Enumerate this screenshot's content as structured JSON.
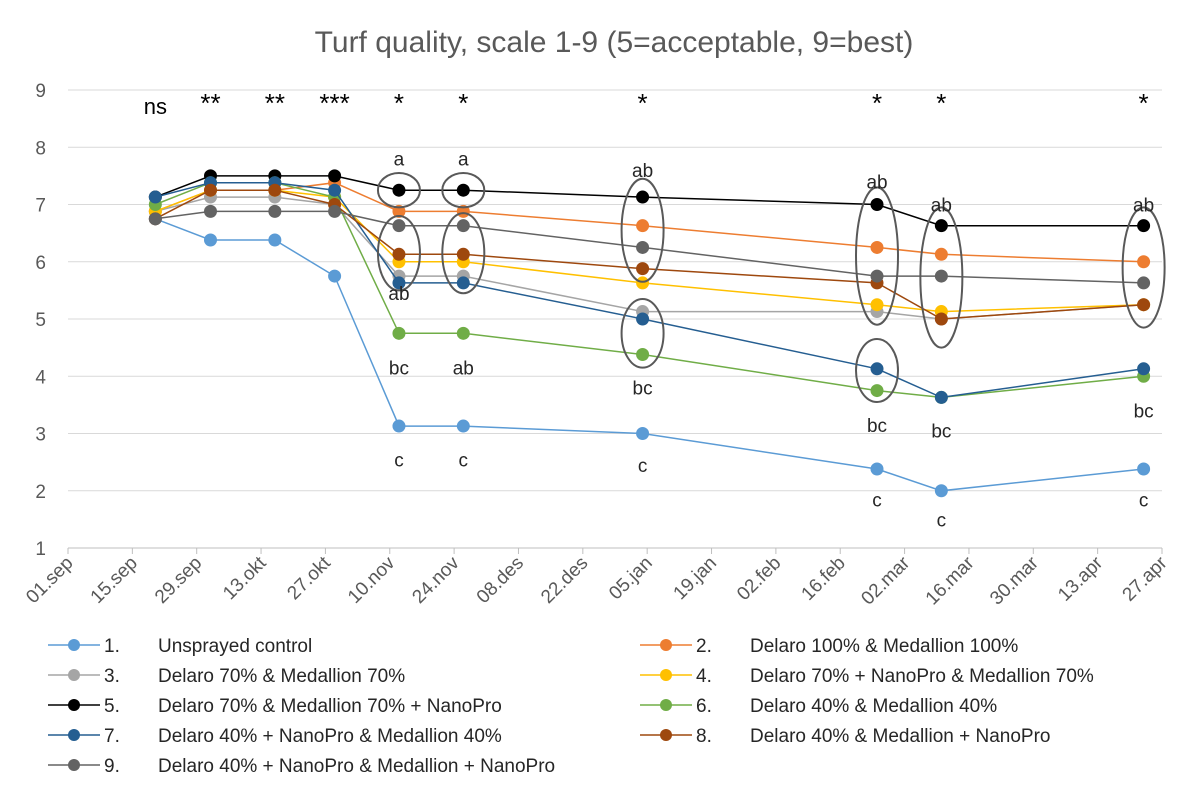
{
  "chart_data": {
    "type": "line",
    "title": "Turf quality, scale 1-9 (5=acceptable, 9=best)",
    "xlabel": "",
    "ylabel": "",
    "ylim": [
      1,
      9
    ],
    "yticks": [
      "1",
      "2",
      "3",
      "4",
      "5",
      "6",
      "7",
      "8",
      "9"
    ],
    "x_range_days": [
      0,
      238
    ],
    "x_ticks": [
      {
        "label": "01.sep",
        "day": 0
      },
      {
        "label": "15.sep",
        "day": 14
      },
      {
        "label": "29.sep",
        "day": 28
      },
      {
        "label": "13.okt",
        "day": 42
      },
      {
        "label": "27.okt",
        "day": 56
      },
      {
        "label": "10.nov",
        "day": 70
      },
      {
        "label": "24.nov",
        "day": 84
      },
      {
        "label": "08.des",
        "day": 98
      },
      {
        "label": "22.des",
        "day": 112
      },
      {
        "label": "05.jan",
        "day": 126
      },
      {
        "label": "19.jan",
        "day": 140
      },
      {
        "label": "02.feb",
        "day": 154
      },
      {
        "label": "16.feb",
        "day": 168
      },
      {
        "label": "02.mar",
        "day": 182
      },
      {
        "label": "16.mar",
        "day": 196
      },
      {
        "label": "30.mar",
        "day": 210
      },
      {
        "label": "13.apr",
        "day": 224
      },
      {
        "label": "27.apr",
        "day": 238
      }
    ],
    "x_days": [
      19,
      31,
      45,
      58,
      72,
      86,
      125,
      176,
      190,
      234
    ],
    "significance": [
      "ns",
      "**",
      "**",
      "***",
      "*",
      "*",
      "*",
      "*",
      "*",
      "*"
    ],
    "series": [
      {
        "id": "1",
        "name": "Unsprayed control",
        "color": "#5B9BD5",
        "values": [
          6.75,
          6.38,
          6.38,
          5.75,
          3.13,
          3.13,
          3.0,
          2.38,
          2.0,
          2.38
        ]
      },
      {
        "id": "2",
        "name": "Delaro 100% & Medallion 100%",
        "color": "#ED7D31",
        "values": [
          6.88,
          7.25,
          7.25,
          7.38,
          6.88,
          6.88,
          6.63,
          6.25,
          6.13,
          6.0
        ]
      },
      {
        "id": "3",
        "name": "Delaro 70% & Medallion 70%",
        "color": "#A5A5A5",
        "values": [
          6.88,
          7.13,
          7.13,
          7.0,
          5.75,
          5.75,
          5.13,
          5.13,
          5.0,
          5.25
        ]
      },
      {
        "id": "4",
        "name": "Delaro 70% + NanoPro & Medallion 70%",
        "color": "#FFC000",
        "values": [
          6.88,
          7.25,
          7.25,
          7.13,
          6.0,
          6.0,
          5.63,
          5.25,
          5.13,
          5.25
        ]
      },
      {
        "id": "5",
        "name": "Delaro 70% & Medallion 70% + NanoPro",
        "color": "#000000",
        "values": [
          7.13,
          7.5,
          7.5,
          7.5,
          7.25,
          7.25,
          7.13,
          7.0,
          6.63,
          6.63
        ]
      },
      {
        "id": "6",
        "name": "Delaro 40% & Medallion 40%",
        "color": "#70AD47",
        "values": [
          7.0,
          7.38,
          7.38,
          7.13,
          4.75,
          4.75,
          4.38,
          3.75,
          3.63,
          4.0
        ]
      },
      {
        "id": "7",
        "name": "Delaro 40% + NanoPro & Medallion 40%",
        "color": "#255E91",
        "values": [
          7.13,
          7.38,
          7.38,
          7.25,
          5.63,
          5.63,
          5.0,
          4.13,
          3.63,
          4.13
        ]
      },
      {
        "id": "8",
        "name": "Delaro 40% & Medallion + NanoPro",
        "color": "#9E480E",
        "values": [
          6.75,
          7.25,
          7.25,
          7.0,
          6.13,
          6.13,
          5.88,
          5.63,
          5.0,
          5.25
        ]
      },
      {
        "id": "9",
        "name": "Delaro 40% + NanoPro & Medallion + NanoPro",
        "color": "#636363",
        "values": [
          6.75,
          6.88,
          6.88,
          6.88,
          6.63,
          6.63,
          6.25,
          5.75,
          5.75,
          5.63
        ]
      }
    ],
    "letter_annotations": [
      {
        "text": "a",
        "day": 72,
        "y": 7.8
      },
      {
        "text": "ab",
        "day": 72,
        "y": 5.45
      },
      {
        "text": "bc",
        "day": 72,
        "y": 4.15
      },
      {
        "text": "c",
        "day": 72,
        "y": 2.55
      },
      {
        "text": "a",
        "day": 86,
        "y": 7.8
      },
      {
        "text": "ab",
        "day": 86,
        "y": 4.15
      },
      {
        "text": "c",
        "day": 86,
        "y": 2.55
      },
      {
        "text": "ab",
        "day": 125,
        "y": 7.6
      },
      {
        "text": "bc",
        "day": 125,
        "y": 3.8
      },
      {
        "text": "c",
        "day": 125,
        "y": 2.45
      },
      {
        "text": "ab",
        "day": 176,
        "y": 7.4
      },
      {
        "text": "bc",
        "day": 176,
        "y": 3.15
      },
      {
        "text": "c",
        "day": 176,
        "y": 1.85
      },
      {
        "text": "ab",
        "day": 190,
        "y": 7.0
      },
      {
        "text": "bc",
        "day": 190,
        "y": 3.05
      },
      {
        "text": "c",
        "day": 190,
        "y": 1.5
      },
      {
        "text": "ab",
        "day": 234,
        "y": 7.0
      },
      {
        "text": "bc",
        "day": 234,
        "y": 3.4
      },
      {
        "text": "c",
        "day": 234,
        "y": 1.85
      }
    ],
    "highlight_ellipses": [
      {
        "day": 72,
        "y_min": 6.95,
        "y_max": 7.55
      },
      {
        "day": 72,
        "y_min": 5.5,
        "y_max": 6.8
      },
      {
        "day": 86,
        "y_min": 6.95,
        "y_max": 7.55
      },
      {
        "day": 86,
        "y_min": 5.45,
        "y_max": 6.85
      },
      {
        "day": 125,
        "y_min": 5.65,
        "y_max": 7.45
      },
      {
        "day": 125,
        "y_min": 4.15,
        "y_max": 5.35
      },
      {
        "day": 176,
        "y_min": 4.9,
        "y_max": 7.3
      },
      {
        "day": 176,
        "y_min": 3.55,
        "y_max": 4.65
      },
      {
        "day": 190,
        "y_min": 4.5,
        "y_max": 6.95
      },
      {
        "day": 234,
        "y_min": 4.85,
        "y_max": 6.95
      }
    ],
    "legend": {
      "position": "bottom",
      "columns": 2
    }
  }
}
